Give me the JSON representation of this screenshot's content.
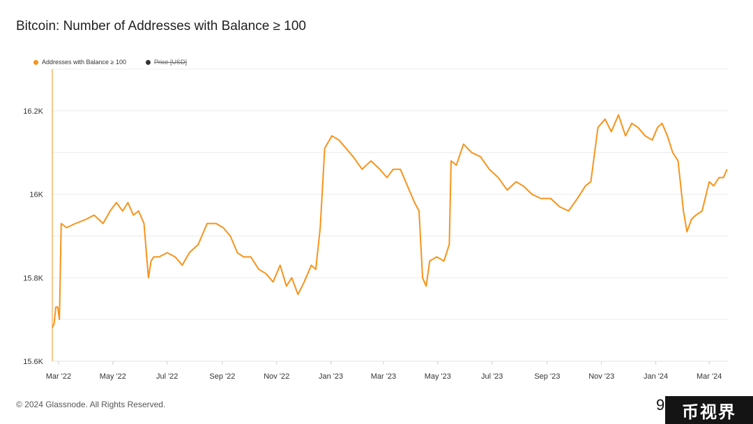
{
  "chart_data": {
    "type": "line",
    "title": "Bitcoin: Number of Addresses with Balance ≥ 100",
    "legend": [
      {
        "name": "Addresses with Balance ≥ 100",
        "color": "#f7931a",
        "active": true
      },
      {
        "name": "Price [USD]",
        "color": "#333333",
        "active": false
      }
    ],
    "legend_position": "top-left",
    "grid": true,
    "x_tick_labels": [
      "Mar '22",
      "May '22",
      "Jul '22",
      "Sep '22",
      "Nov '22",
      "Jan '23",
      "Mar '23",
      "May '23",
      "Jul '23",
      "Sep '23",
      "Nov '23",
      "Jan '24",
      "Mar '24"
    ],
    "y_tick_labels": [
      "15.6K",
      "15.8K",
      "16K",
      "16.2K"
    ],
    "ylim": [
      15600,
      16300
    ],
    "xlim": [
      "2022-02-22",
      "2024-03-22"
    ],
    "series": [
      {
        "name": "Addresses with Balance ≥ 100",
        "color": "#f7931a",
        "x": [
          "2022-02-22",
          "2022-02-24",
          "2022-02-26",
          "2022-02-28",
          "2022-03-02",
          "2022-03-04",
          "2022-03-10",
          "2022-03-20",
          "2022-04-01",
          "2022-04-10",
          "2022-04-20",
          "2022-04-28",
          "2022-05-05",
          "2022-05-12",
          "2022-05-18",
          "2022-05-24",
          "2022-05-30",
          "2022-06-05",
          "2022-06-10",
          "2022-06-13",
          "2022-06-16",
          "2022-06-22",
          "2022-07-01",
          "2022-07-10",
          "2022-07-18",
          "2022-07-26",
          "2022-08-05",
          "2022-08-15",
          "2022-08-25",
          "2022-09-02",
          "2022-09-10",
          "2022-09-18",
          "2022-09-25",
          "2022-10-03",
          "2022-10-12",
          "2022-10-20",
          "2022-10-28",
          "2022-11-05",
          "2022-11-12",
          "2022-11-18",
          "2022-11-25",
          "2022-12-02",
          "2022-12-10",
          "2022-12-15",
          "2022-12-20",
          "2022-12-25",
          "2023-01-02",
          "2023-01-10",
          "2023-01-18",
          "2023-01-26",
          "2023-02-05",
          "2023-02-15",
          "2023-02-25",
          "2023-03-05",
          "2023-03-12",
          "2023-03-20",
          "2023-03-28",
          "2023-04-05",
          "2023-04-10",
          "2023-04-14",
          "2023-04-18",
          "2023-04-22",
          "2023-04-30",
          "2023-05-08",
          "2023-05-14",
          "2023-05-16",
          "2023-05-22",
          "2023-05-30",
          "2023-06-08",
          "2023-06-18",
          "2023-06-28",
          "2023-07-08",
          "2023-07-18",
          "2023-07-28",
          "2023-08-05",
          "2023-08-15",
          "2023-08-25",
          "2023-09-05",
          "2023-09-15",
          "2023-09-25",
          "2023-10-05",
          "2023-10-14",
          "2023-10-20",
          "2023-10-28",
          "2023-11-05",
          "2023-11-12",
          "2023-11-20",
          "2023-11-28",
          "2023-12-05",
          "2023-12-12",
          "2023-12-20",
          "2023-12-28",
          "2024-01-03",
          "2024-01-08",
          "2024-01-14",
          "2024-01-20",
          "2024-01-26",
          "2024-02-01",
          "2024-02-05",
          "2024-02-10",
          "2024-02-15",
          "2024-02-22",
          "2024-03-01",
          "2024-03-06",
          "2024-03-12",
          "2024-03-17",
          "2024-03-21"
        ],
        "values": [
          15680,
          15690,
          15730,
          15730,
          15700,
          15930,
          15920,
          15930,
          15940,
          15950,
          15930,
          15960,
          15980,
          15960,
          15980,
          15950,
          15960,
          15930,
          15800,
          15840,
          15850,
          15850,
          15860,
          15850,
          15830,
          15860,
          15880,
          15930,
          15930,
          15920,
          15900,
          15860,
          15850,
          15850,
          15820,
          15810,
          15790,
          15830,
          15780,
          15800,
          15760,
          15790,
          15830,
          15820,
          15920,
          16110,
          16140,
          16130,
          16110,
          16090,
          16060,
          16080,
          16060,
          16040,
          16060,
          16060,
          16020,
          15980,
          15960,
          15800,
          15780,
          15840,
          15850,
          15840,
          15880,
          16080,
          16070,
          16120,
          16100,
          16090,
          16060,
          16040,
          16010,
          16030,
          16020,
          16000,
          15990,
          15990,
          15970,
          15960,
          15990,
          16020,
          16030,
          16160,
          16180,
          16150,
          16190,
          16140,
          16170,
          16160,
          16140,
          16130,
          16160,
          16170,
          16140,
          16100,
          16080,
          15960,
          15910,
          15940,
          15950,
          15960,
          16030,
          16020,
          16040,
          16040,
          16060
        ]
      }
    ]
  },
  "footer": {
    "copyright": "© 2024 Glassnode. All Rights Reserved."
  },
  "watermark": {
    "partial_text": "9",
    "badge_text": "币视界"
  }
}
